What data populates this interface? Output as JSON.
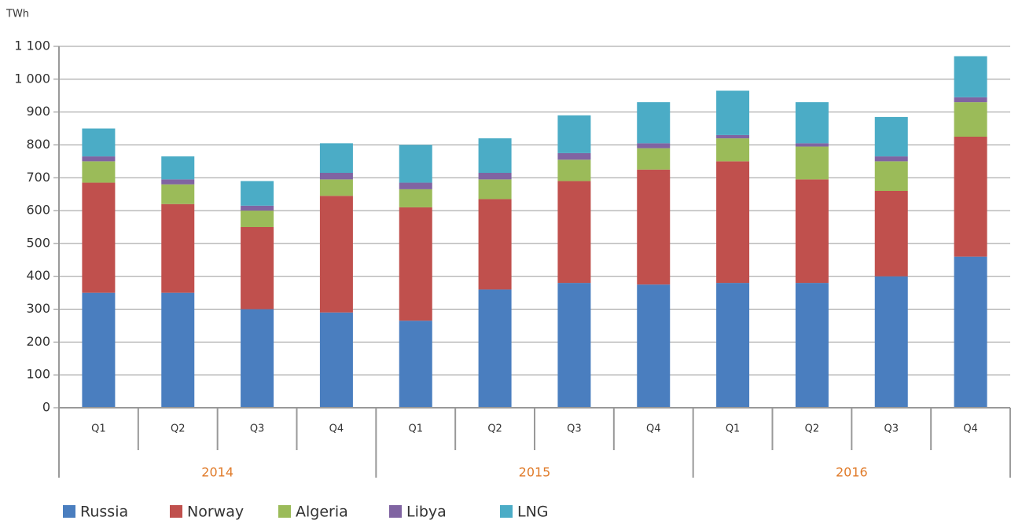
{
  "chart_data": {
    "type": "stacked_bar",
    "y_label": "TWh",
    "categories": [
      "Q1",
      "Q2",
      "Q3",
      "Q4",
      "Q1",
      "Q2",
      "Q3",
      "Q4",
      "Q1",
      "Q2",
      "Q3",
      "Q4"
    ],
    "category_groups": [
      "2014",
      "2015",
      "2016"
    ],
    "series": [
      {
        "name": "Russia",
        "color": "#4a7ebf",
        "values": [
          350,
          350,
          300,
          290,
          265,
          360,
          380,
          375,
          380,
          380,
          400,
          460
        ]
      },
      {
        "name": "Norway",
        "color": "#c0504d",
        "values": [
          335,
          270,
          250,
          355,
          345,
          275,
          310,
          350,
          370,
          315,
          260,
          365
        ]
      },
      {
        "name": "Algeria",
        "color": "#9bbb59",
        "values": [
          65,
          60,
          50,
          50,
          55,
          60,
          65,
          65,
          70,
          100,
          90,
          105
        ]
      },
      {
        "name": "Libya",
        "color": "#8064a2",
        "values": [
          15,
          15,
          15,
          20,
          20,
          20,
          20,
          15,
          10,
          10,
          15,
          15
        ]
      },
      {
        "name": "LNG",
        "color": "#4bacc6",
        "values": [
          85,
          70,
          75,
          90,
          115,
          105,
          115,
          125,
          135,
          125,
          120,
          125
        ]
      }
    ],
    "ylim": [
      0,
      1100
    ],
    "yticks": [
      0,
      100,
      200,
      300,
      400,
      500,
      600,
      700,
      800,
      900,
      {
        "value": 1000,
        "label": "1 000"
      },
      {
        "value": 1100,
        "label": "1 100"
      }
    ],
    "grid": true
  }
}
